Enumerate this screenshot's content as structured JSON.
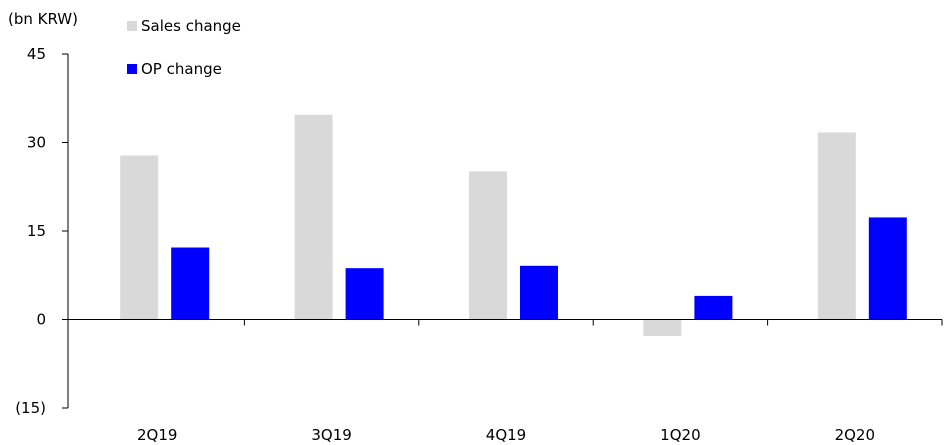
{
  "chart_data": {
    "type": "bar",
    "unit_label": "(bn KRW)",
    "categories": [
      "2Q19",
      "3Q19",
      "4Q19",
      "1Q20",
      "2Q20"
    ],
    "series": [
      {
        "name": "Sales change",
        "color": "#d9d9d9",
        "values": [
          27.8,
          34.7,
          25.1,
          -2.8,
          31.7
        ]
      },
      {
        "name": "OP change",
        "color": "#0000ff",
        "values": [
          12.2,
          8.7,
          9.1,
          4.0,
          17.3
        ]
      }
    ],
    "ylim": [
      -15,
      45
    ],
    "yticks": [
      -15,
      0,
      15,
      30,
      45
    ],
    "ytick_labels": [
      "(15)",
      "0",
      "15",
      "30",
      "45"
    ],
    "grid": false,
    "legend_position": "top-left"
  }
}
